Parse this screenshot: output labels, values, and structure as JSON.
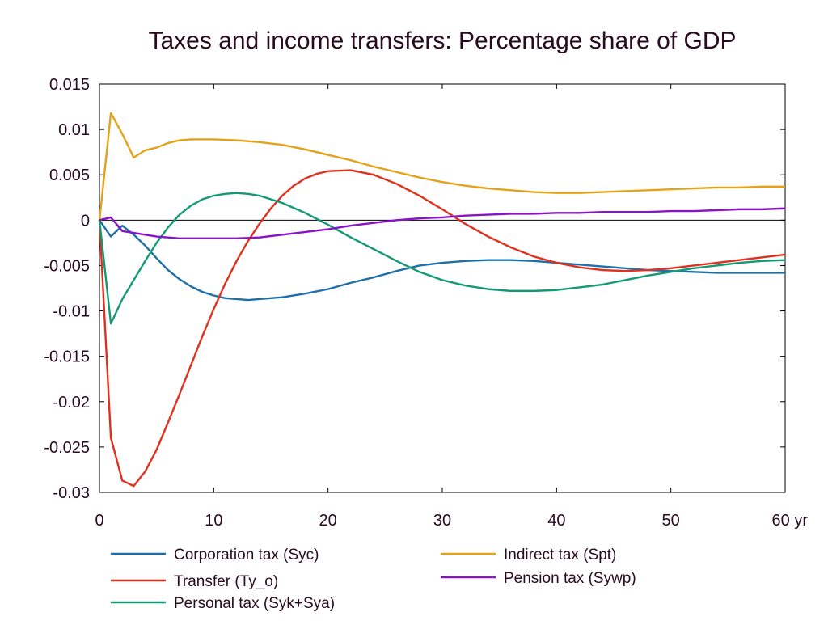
{
  "chart_data": {
    "type": "line",
    "title": "Taxes and income transfers: Percentage share of GDP",
    "xlabel": "",
    "ylabel": "",
    "xlim": [
      0,
      60
    ],
    "ylim": [
      -0.03,
      0.015
    ],
    "x_ticks": [
      0,
      10,
      20,
      30,
      40,
      50,
      60
    ],
    "x_tick_labels": [
      "0",
      "10",
      "20",
      "30",
      "40",
      "50",
      "60 yr"
    ],
    "y_ticks": [
      0.015,
      0.01,
      0.005,
      0,
      -0.005,
      -0.01,
      -0.015,
      -0.02,
      -0.025,
      -0.03
    ],
    "y_tick_labels": [
      "0.015",
      "0.01",
      "0.005",
      "0",
      "-0.005",
      "-0.01",
      "-0.015",
      "-0.02",
      "-0.025",
      "-0.03"
    ],
    "grid": false,
    "zero_line": true,
    "legend_position": "bottom",
    "series": [
      {
        "name": "Corporation tax (Syc)",
        "color": "#1f6fa8",
        "points": [
          [
            0,
            0
          ],
          [
            1,
            -0.0018
          ],
          [
            2,
            -0.0006
          ],
          [
            3,
            -0.0016
          ],
          [
            4,
            -0.0028
          ],
          [
            5,
            -0.0042
          ],
          [
            6,
            -0.0055
          ],
          [
            7,
            -0.0065
          ],
          [
            8,
            -0.0073
          ],
          [
            9,
            -0.0079
          ],
          [
            10,
            -0.0083
          ],
          [
            11,
            -0.0086
          ],
          [
            12,
            -0.0087
          ],
          [
            13,
            -0.0088
          ],
          [
            14,
            -0.0087
          ],
          [
            16,
            -0.0085
          ],
          [
            18,
            -0.0081
          ],
          [
            20,
            -0.0076
          ],
          [
            22,
            -0.0069
          ],
          [
            24,
            -0.0063
          ],
          [
            26,
            -0.0056
          ],
          [
            28,
            -0.005
          ],
          [
            30,
            -0.0047
          ],
          [
            32,
            -0.0045
          ],
          [
            34,
            -0.0044
          ],
          [
            36,
            -0.0044
          ],
          [
            38,
            -0.0045
          ],
          [
            40,
            -0.0047
          ],
          [
            42,
            -0.0049
          ],
          [
            44,
            -0.0051
          ],
          [
            46,
            -0.0053
          ],
          [
            48,
            -0.0055
          ],
          [
            50,
            -0.0056
          ],
          [
            52,
            -0.0057
          ],
          [
            54,
            -0.0058
          ],
          [
            56,
            -0.0058
          ],
          [
            58,
            -0.0058
          ],
          [
            60,
            -0.0058
          ]
        ]
      },
      {
        "name": "Transfer (Ty_o)",
        "color": "#e0301e",
        "points": [
          [
            0,
            0
          ],
          [
            1,
            -0.024
          ],
          [
            2,
            -0.0287
          ],
          [
            3,
            -0.0293
          ],
          [
            4,
            -0.0277
          ],
          [
            5,
            -0.0253
          ],
          [
            6,
            -0.0223
          ],
          [
            7,
            -0.0192
          ],
          [
            8,
            -0.016
          ],
          [
            9,
            -0.0128
          ],
          [
            10,
            -0.0098
          ],
          [
            11,
            -0.007
          ],
          [
            12,
            -0.0045
          ],
          [
            13,
            -0.0023
          ],
          [
            14,
            -0.0004
          ],
          [
            15,
            0.0013
          ],
          [
            16,
            0.0027
          ],
          [
            17,
            0.0038
          ],
          [
            18,
            0.0046
          ],
          [
            19,
            0.0051
          ],
          [
            20,
            0.0054
          ],
          [
            22,
            0.0055
          ],
          [
            24,
            0.005
          ],
          [
            26,
            0.004
          ],
          [
            28,
            0.0027
          ],
          [
            30,
            0.0012
          ],
          [
            32,
            -0.0004
          ],
          [
            34,
            -0.0018
          ],
          [
            36,
            -0.003
          ],
          [
            38,
            -0.004
          ],
          [
            40,
            -0.0047
          ],
          [
            42,
            -0.0052
          ],
          [
            44,
            -0.0055
          ],
          [
            46,
            -0.0056
          ],
          [
            48,
            -0.0055
          ],
          [
            50,
            -0.0053
          ],
          [
            52,
            -0.005
          ],
          [
            54,
            -0.0047
          ],
          [
            56,
            -0.0044
          ],
          [
            58,
            -0.0041
          ],
          [
            60,
            -0.0038
          ]
        ]
      },
      {
        "name": "Personal tax (Syk+Sya)",
        "color": "#139a74",
        "points": [
          [
            0,
            0
          ],
          [
            1,
            -0.0114
          ],
          [
            2,
            -0.0087
          ],
          [
            3,
            -0.0066
          ],
          [
            4,
            -0.0045
          ],
          [
            5,
            -0.0025
          ],
          [
            6,
            -0.0008
          ],
          [
            7,
            0.0006
          ],
          [
            8,
            0.0016
          ],
          [
            9,
            0.0023
          ],
          [
            10,
            0.0027
          ],
          [
            11,
            0.0029
          ],
          [
            12,
            0.003
          ],
          [
            13,
            0.0029
          ],
          [
            14,
            0.0027
          ],
          [
            16,
            0.0019
          ],
          [
            18,
            0.0008
          ],
          [
            20,
            -0.0005
          ],
          [
            22,
            -0.0019
          ],
          [
            24,
            -0.0032
          ],
          [
            26,
            -0.0045
          ],
          [
            28,
            -0.0057
          ],
          [
            30,
            -0.0066
          ],
          [
            32,
            -0.0072
          ],
          [
            34,
            -0.0076
          ],
          [
            36,
            -0.0078
          ],
          [
            38,
            -0.0078
          ],
          [
            40,
            -0.0077
          ],
          [
            42,
            -0.0074
          ],
          [
            44,
            -0.0071
          ],
          [
            46,
            -0.0066
          ],
          [
            48,
            -0.0061
          ],
          [
            50,
            -0.0057
          ],
          [
            52,
            -0.0053
          ],
          [
            54,
            -0.005
          ],
          [
            56,
            -0.0047
          ],
          [
            58,
            -0.0045
          ],
          [
            60,
            -0.0044
          ]
        ]
      },
      {
        "name": "Indirect tax (Spt)",
        "color": "#e3a21a",
        "points": [
          [
            0,
            0
          ],
          [
            1,
            0.0118
          ],
          [
            2,
            0.0095
          ],
          [
            3,
            0.0069
          ],
          [
            4,
            0.0077
          ],
          [
            5,
            0.008
          ],
          [
            6,
            0.0085
          ],
          [
            7,
            0.0088
          ],
          [
            8,
            0.0089
          ],
          [
            10,
            0.0089
          ],
          [
            12,
            0.0088
          ],
          [
            14,
            0.0086
          ],
          [
            16,
            0.0083
          ],
          [
            18,
            0.0078
          ],
          [
            20,
            0.0072
          ],
          [
            22,
            0.0066
          ],
          [
            24,
            0.0059
          ],
          [
            26,
            0.0053
          ],
          [
            28,
            0.0047
          ],
          [
            30,
            0.0042
          ],
          [
            32,
            0.0038
          ],
          [
            34,
            0.0035
          ],
          [
            36,
            0.0033
          ],
          [
            38,
            0.0031
          ],
          [
            40,
            0.003
          ],
          [
            42,
            0.003
          ],
          [
            44,
            0.0031
          ],
          [
            46,
            0.0032
          ],
          [
            48,
            0.0033
          ],
          [
            50,
            0.0034
          ],
          [
            52,
            0.0035
          ],
          [
            54,
            0.0036
          ],
          [
            56,
            0.0036
          ],
          [
            58,
            0.0037
          ],
          [
            60,
            0.0037
          ]
        ]
      },
      {
        "name": "Pension tax (Sywp)",
        "color": "#8a12c9",
        "points": [
          [
            0,
            0
          ],
          [
            1,
            0.0003
          ],
          [
            2,
            -0.0012
          ],
          [
            3,
            -0.0014
          ],
          [
            4,
            -0.0016
          ],
          [
            5,
            -0.0018
          ],
          [
            6,
            -0.0019
          ],
          [
            7,
            -0.002
          ],
          [
            8,
            -0.002
          ],
          [
            10,
            -0.002
          ],
          [
            12,
            -0.002
          ],
          [
            14,
            -0.0019
          ],
          [
            16,
            -0.0016
          ],
          [
            18,
            -0.0013
          ],
          [
            20,
            -0.001
          ],
          [
            22,
            -0.0006
          ],
          [
            24,
            -0.0003
          ],
          [
            26,
            0.0
          ],
          [
            28,
            0.0002
          ],
          [
            30,
            0.0003
          ],
          [
            32,
            0.0005
          ],
          [
            34,
            0.0006
          ],
          [
            36,
            0.0007
          ],
          [
            38,
            0.0007
          ],
          [
            40,
            0.0008
          ],
          [
            42,
            0.0008
          ],
          [
            44,
            0.0009
          ],
          [
            46,
            0.0009
          ],
          [
            48,
            0.0009
          ],
          [
            50,
            0.001
          ],
          [
            52,
            0.001
          ],
          [
            54,
            0.0011
          ],
          [
            56,
            0.0012
          ],
          [
            58,
            0.0012
          ],
          [
            60,
            0.0013
          ]
        ]
      }
    ]
  }
}
